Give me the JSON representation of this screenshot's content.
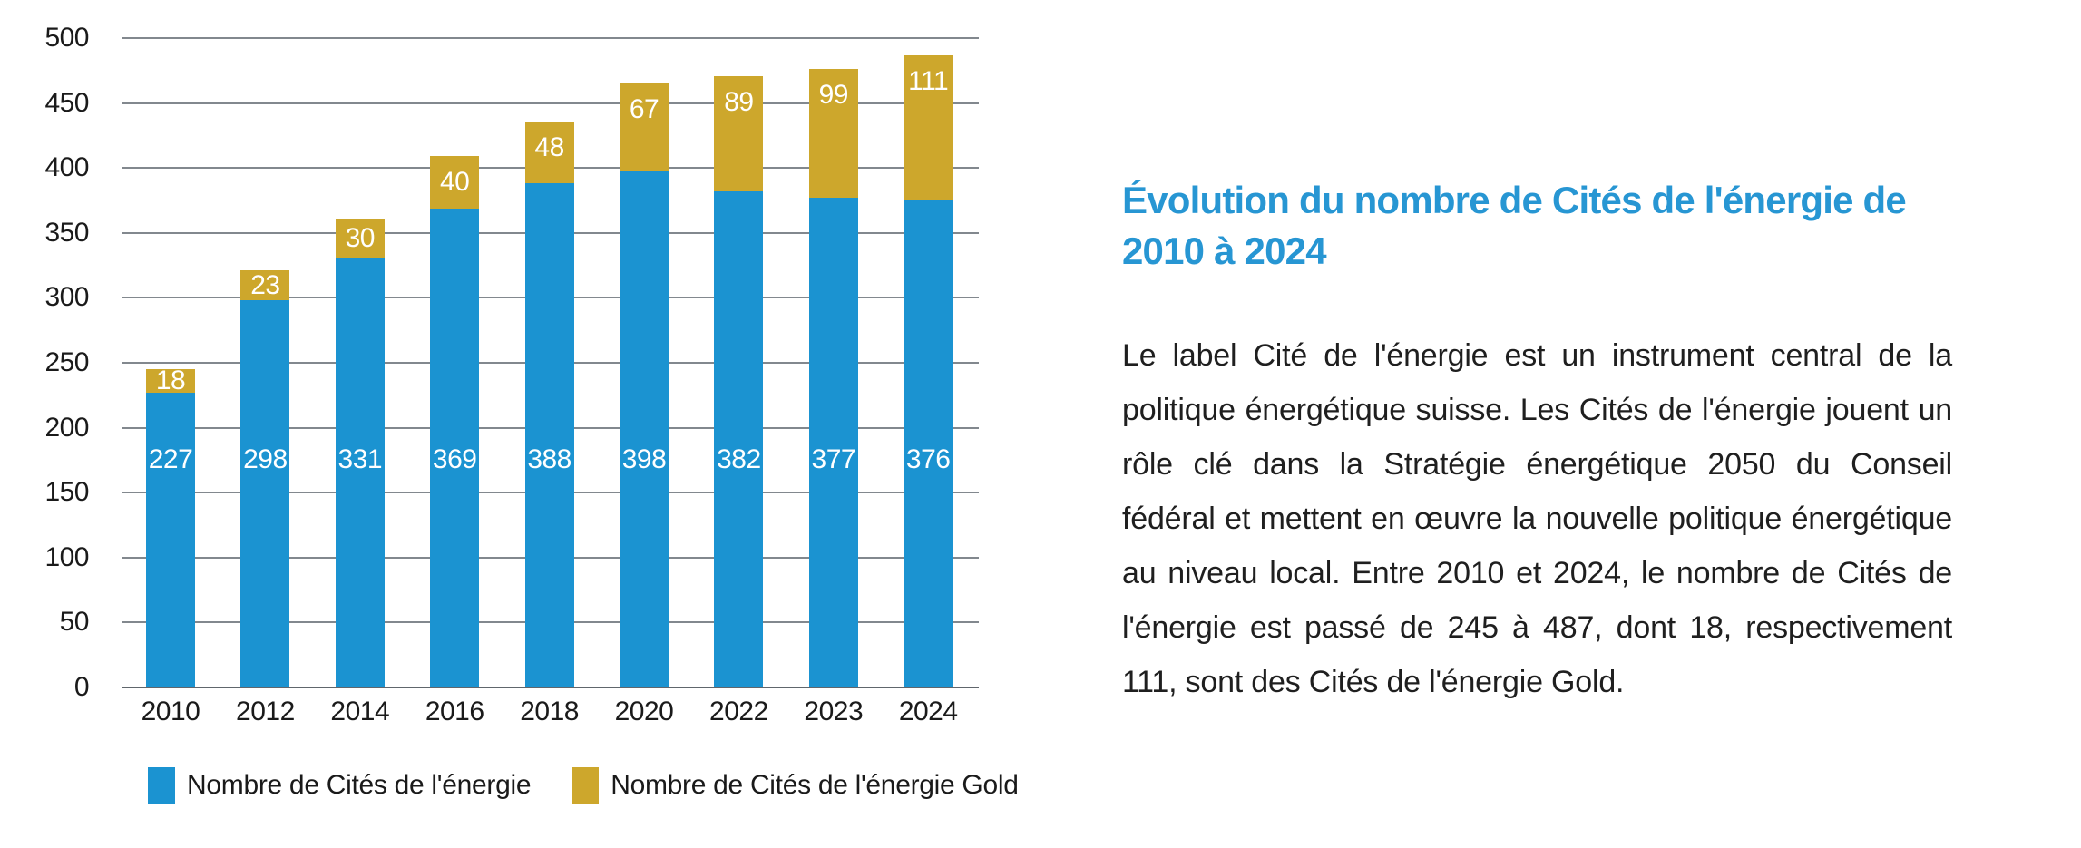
{
  "chart_data": {
    "type": "bar",
    "stacked": true,
    "title": "",
    "categories": [
      "2010",
      "2012",
      "2014",
      "2016",
      "2018",
      "2020",
      "2022",
      "2023",
      "2024"
    ],
    "series": [
      {
        "name": "Nombre de Cités de l'énergie",
        "color": "#1b93d1",
        "values": [
          227,
          298,
          331,
          369,
          388,
          398,
          382,
          377,
          376
        ]
      },
      {
        "name": "Nombre de Cités de l'énergie Gold",
        "color": "#cda72c",
        "values": [
          18,
          23,
          30,
          40,
          48,
          67,
          89,
          99,
          111
        ]
      }
    ],
    "totals": [
      245,
      321,
      361,
      409,
      436,
      465,
      471,
      476,
      487
    ],
    "xlabel": "",
    "ylabel": "",
    "ylim": [
      0,
      500
    ],
    "ytick_step": 50,
    "grid": true,
    "value_label_color": "#ffffff",
    "legend_position": "bottom"
  },
  "article": {
    "title": "Évolution du nombre de Cités de l'énergie de 2010 à 2024",
    "title_color": "#2796d3",
    "body": "Le label Cité de l'énergie est un instrument central de la politique énergétique suisse. Les Cités de l'énergie jouent un rôle clé dans la Stratégie énergétique 2050 du Conseil fédéral et mettent en œuvre la nouvelle politique énergétique au niveau local. Entre 2010 et 2024, le nombre de Cités de l'énergie est passé de 245 à 487, dont 18, respectivement 111, sont des Cités de l'énergie Gold."
  }
}
